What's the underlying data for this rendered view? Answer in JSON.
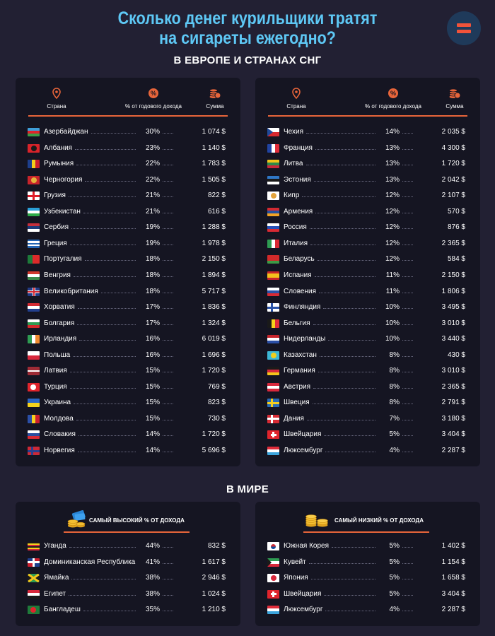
{
  "title": {
    "line1": "Сколько денег курильщики тратят",
    "line2": "на сигареты ежегодно?"
  },
  "logo": {
    "icon": "menu-bars-icon",
    "color": "#f0533a"
  },
  "section_europe": "В ЕВРОПЕ И СТРАНАХ СНГ",
  "section_world": "В МИРЕ",
  "columns": {
    "country": "Страна",
    "percent": "% от годового дохода",
    "sum": "Сумма",
    "country_icon": "location-pin-icon",
    "percent_icon": "percent-badge-icon",
    "sum_icon": "coin-stack-icon"
  },
  "colors": {
    "accent": "#e8653a",
    "title": "#5ec8f5",
    "background": "#222033",
    "panel": "#151522"
  },
  "europe_left": [
    {
      "country": "Азербайджан",
      "percent": "30%",
      "sum": "1 074 $",
      "flag": "az"
    },
    {
      "country": "Албания",
      "percent": "23%",
      "sum": "1 140 $",
      "flag": "al"
    },
    {
      "country": "Румыния",
      "percent": "22%",
      "sum": "1 783 $",
      "flag": "ro"
    },
    {
      "country": "Черногория",
      "percent": "22%",
      "sum": "1 505 $",
      "flag": "me"
    },
    {
      "country": "Грузия",
      "percent": "21%",
      "sum": "822 $",
      "flag": "ge"
    },
    {
      "country": "Узбекистан",
      "percent": "21%",
      "sum": "616 $",
      "flag": "uz"
    },
    {
      "country": "Сербия",
      "percent": "19%",
      "sum": "1 288 $",
      "flag": "rs"
    },
    {
      "country": "Греция",
      "percent": "19%",
      "sum": "1 978 $",
      "flag": "gr"
    },
    {
      "country": "Португалия",
      "percent": "18%",
      "sum": "2 150 $",
      "flag": "pt"
    },
    {
      "country": "Венгрия",
      "percent": "18%",
      "sum": "1 894 $",
      "flag": "hu"
    },
    {
      "country": "Великобритания",
      "percent": "18%",
      "sum": "5 717 $",
      "flag": "gb"
    },
    {
      "country": "Хорватия",
      "percent": "17%",
      "sum": "1 836 $",
      "flag": "hr"
    },
    {
      "country": "Болгария",
      "percent": "17%",
      "sum": "1 324 $",
      "flag": "bg"
    },
    {
      "country": "Ирландия",
      "percent": "16%",
      "sum": "6 019 $",
      "flag": "ie"
    },
    {
      "country": "Польша",
      "percent": "16%",
      "sum": "1 696 $",
      "flag": "pl"
    },
    {
      "country": "Латвия",
      "percent": "15%",
      "sum": "1 720 $",
      "flag": "lv"
    },
    {
      "country": "Турция",
      "percent": "15%",
      "sum": "769 $",
      "flag": "tr"
    },
    {
      "country": "Украина",
      "percent": "15%",
      "sum": "823 $",
      "flag": "ua"
    },
    {
      "country": "Молдова",
      "percent": "15%",
      "sum": "730 $",
      "flag": "md"
    },
    {
      "country": "Словакия",
      "percent": "14%",
      "sum": "1 720 $",
      "flag": "sk"
    },
    {
      "country": "Норвегия",
      "percent": "14%",
      "sum": "5 696 $",
      "flag": "no"
    }
  ],
  "europe_right": [
    {
      "country": "Чехия",
      "percent": "14%",
      "sum": "2 035 $",
      "flag": "cz"
    },
    {
      "country": "Франция",
      "percent": "13%",
      "sum": "4 300 $",
      "flag": "fr"
    },
    {
      "country": "Литва",
      "percent": "13%",
      "sum": "1 720 $",
      "flag": "lt"
    },
    {
      "country": "Эстония",
      "percent": "13%",
      "sum": "2 042 $",
      "flag": "ee"
    },
    {
      "country": "Кипр",
      "percent": "12%",
      "sum": "2 107 $",
      "flag": "cy"
    },
    {
      "country": "Армения",
      "percent": "12%",
      "sum": "570 $",
      "flag": "am"
    },
    {
      "country": "Россия",
      "percent": "12%",
      "sum": "876 $",
      "flag": "ru"
    },
    {
      "country": "Италия",
      "percent": "12%",
      "sum": "2 365 $",
      "flag": "it"
    },
    {
      "country": "Беларусь",
      "percent": "12%",
      "sum": "584 $",
      "flag": "by"
    },
    {
      "country": "Испания",
      "percent": "11%",
      "sum": "2 150 $",
      "flag": "es"
    },
    {
      "country": "Словения",
      "percent": "11%",
      "sum": "1 806 $",
      "flag": "si"
    },
    {
      "country": "Финляндия",
      "percent": "10%",
      "sum": "3 495 $",
      "flag": "fi"
    },
    {
      "country": "Бельгия",
      "percent": "10%",
      "sum": "3 010 $",
      "flag": "be"
    },
    {
      "country": "Нидерланды",
      "percent": "10%",
      "sum": "3 440 $",
      "flag": "nl"
    },
    {
      "country": "Казахстан",
      "percent": "8%",
      "sum": "430 $",
      "flag": "kz"
    },
    {
      "country": "Германия",
      "percent": "8%",
      "sum": "3 010 $",
      "flag": "de"
    },
    {
      "country": "Австрия",
      "percent": "8%",
      "sum": "2 365 $",
      "flag": "at"
    },
    {
      "country": "Швеция",
      "percent": "8%",
      "sum": "2 791 $",
      "flag": "se"
    },
    {
      "country": "Дания",
      "percent": "7%",
      "sum": "3 180 $",
      "flag": "dk"
    },
    {
      "country": "Швейцария",
      "percent": "5%",
      "sum": "3 404 $",
      "flag": "ch"
    },
    {
      "country": "Люксембург",
      "percent": "4%",
      "sum": "2 287 $",
      "flag": "lu"
    }
  ],
  "world_highest": {
    "title": "САМЫЙ ВЫСОКИЙ % ОТ ДОХОДА",
    "icon": "coins-and-banknotes-icon",
    "rows": [
      {
        "country": "Уганда",
        "percent": "44%",
        "sum": "832 $",
        "flag": "ug"
      },
      {
        "country": "Доминиканская Республика",
        "percent": "41%",
        "sum": "1 617 $",
        "flag": "do"
      },
      {
        "country": "Ямайка",
        "percent": "38%",
        "sum": "2 946 $",
        "flag": "jm"
      },
      {
        "country": "Египет",
        "percent": "38%",
        "sum": "1 024 $",
        "flag": "eg"
      },
      {
        "country": "Бангладеш",
        "percent": "35%",
        "sum": "1 210 $",
        "flag": "bd"
      }
    ]
  },
  "world_lowest": {
    "title": "САМЫЙ НИЗКИЙ % ОТ ДОХОДА",
    "icon": "coin-stacks-icon",
    "rows": [
      {
        "country": "Южная Корея",
        "percent": "5%",
        "sum": "1 402 $",
        "flag": "kr"
      },
      {
        "country": "Кувейт",
        "percent": "5%",
        "sum": "1 154 $",
        "flag": "kw"
      },
      {
        "country": "Япония",
        "percent": "5%",
        "sum": "1 658 $",
        "flag": "jp"
      },
      {
        "country": "Швейцария",
        "percent": "5%",
        "sum": "3 404 $",
        "flag": "ch"
      },
      {
        "country": "Люксембург",
        "percent": "4%",
        "sum": "2 287 $",
        "flag": "lu"
      }
    ]
  }
}
